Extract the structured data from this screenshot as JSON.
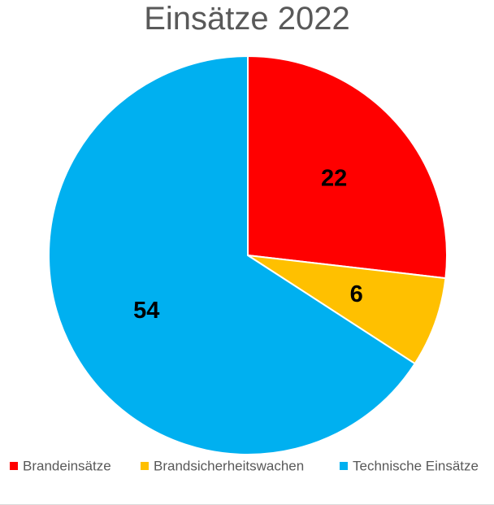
{
  "chart_data": {
    "type": "pie",
    "title": "Einsätze 2022",
    "categories": [
      "Brandeinsätze",
      "Brandsicherheitswachen",
      "Technische Einsätze"
    ],
    "values": [
      22,
      6,
      54
    ],
    "data_labels": [
      "22",
      "6",
      "54"
    ],
    "colors": [
      "#ff0000",
      "#ffc000",
      "#00b0f0"
    ],
    "start_angle": "12 o'clock, clockwise",
    "legend_position": "bottom"
  }
}
